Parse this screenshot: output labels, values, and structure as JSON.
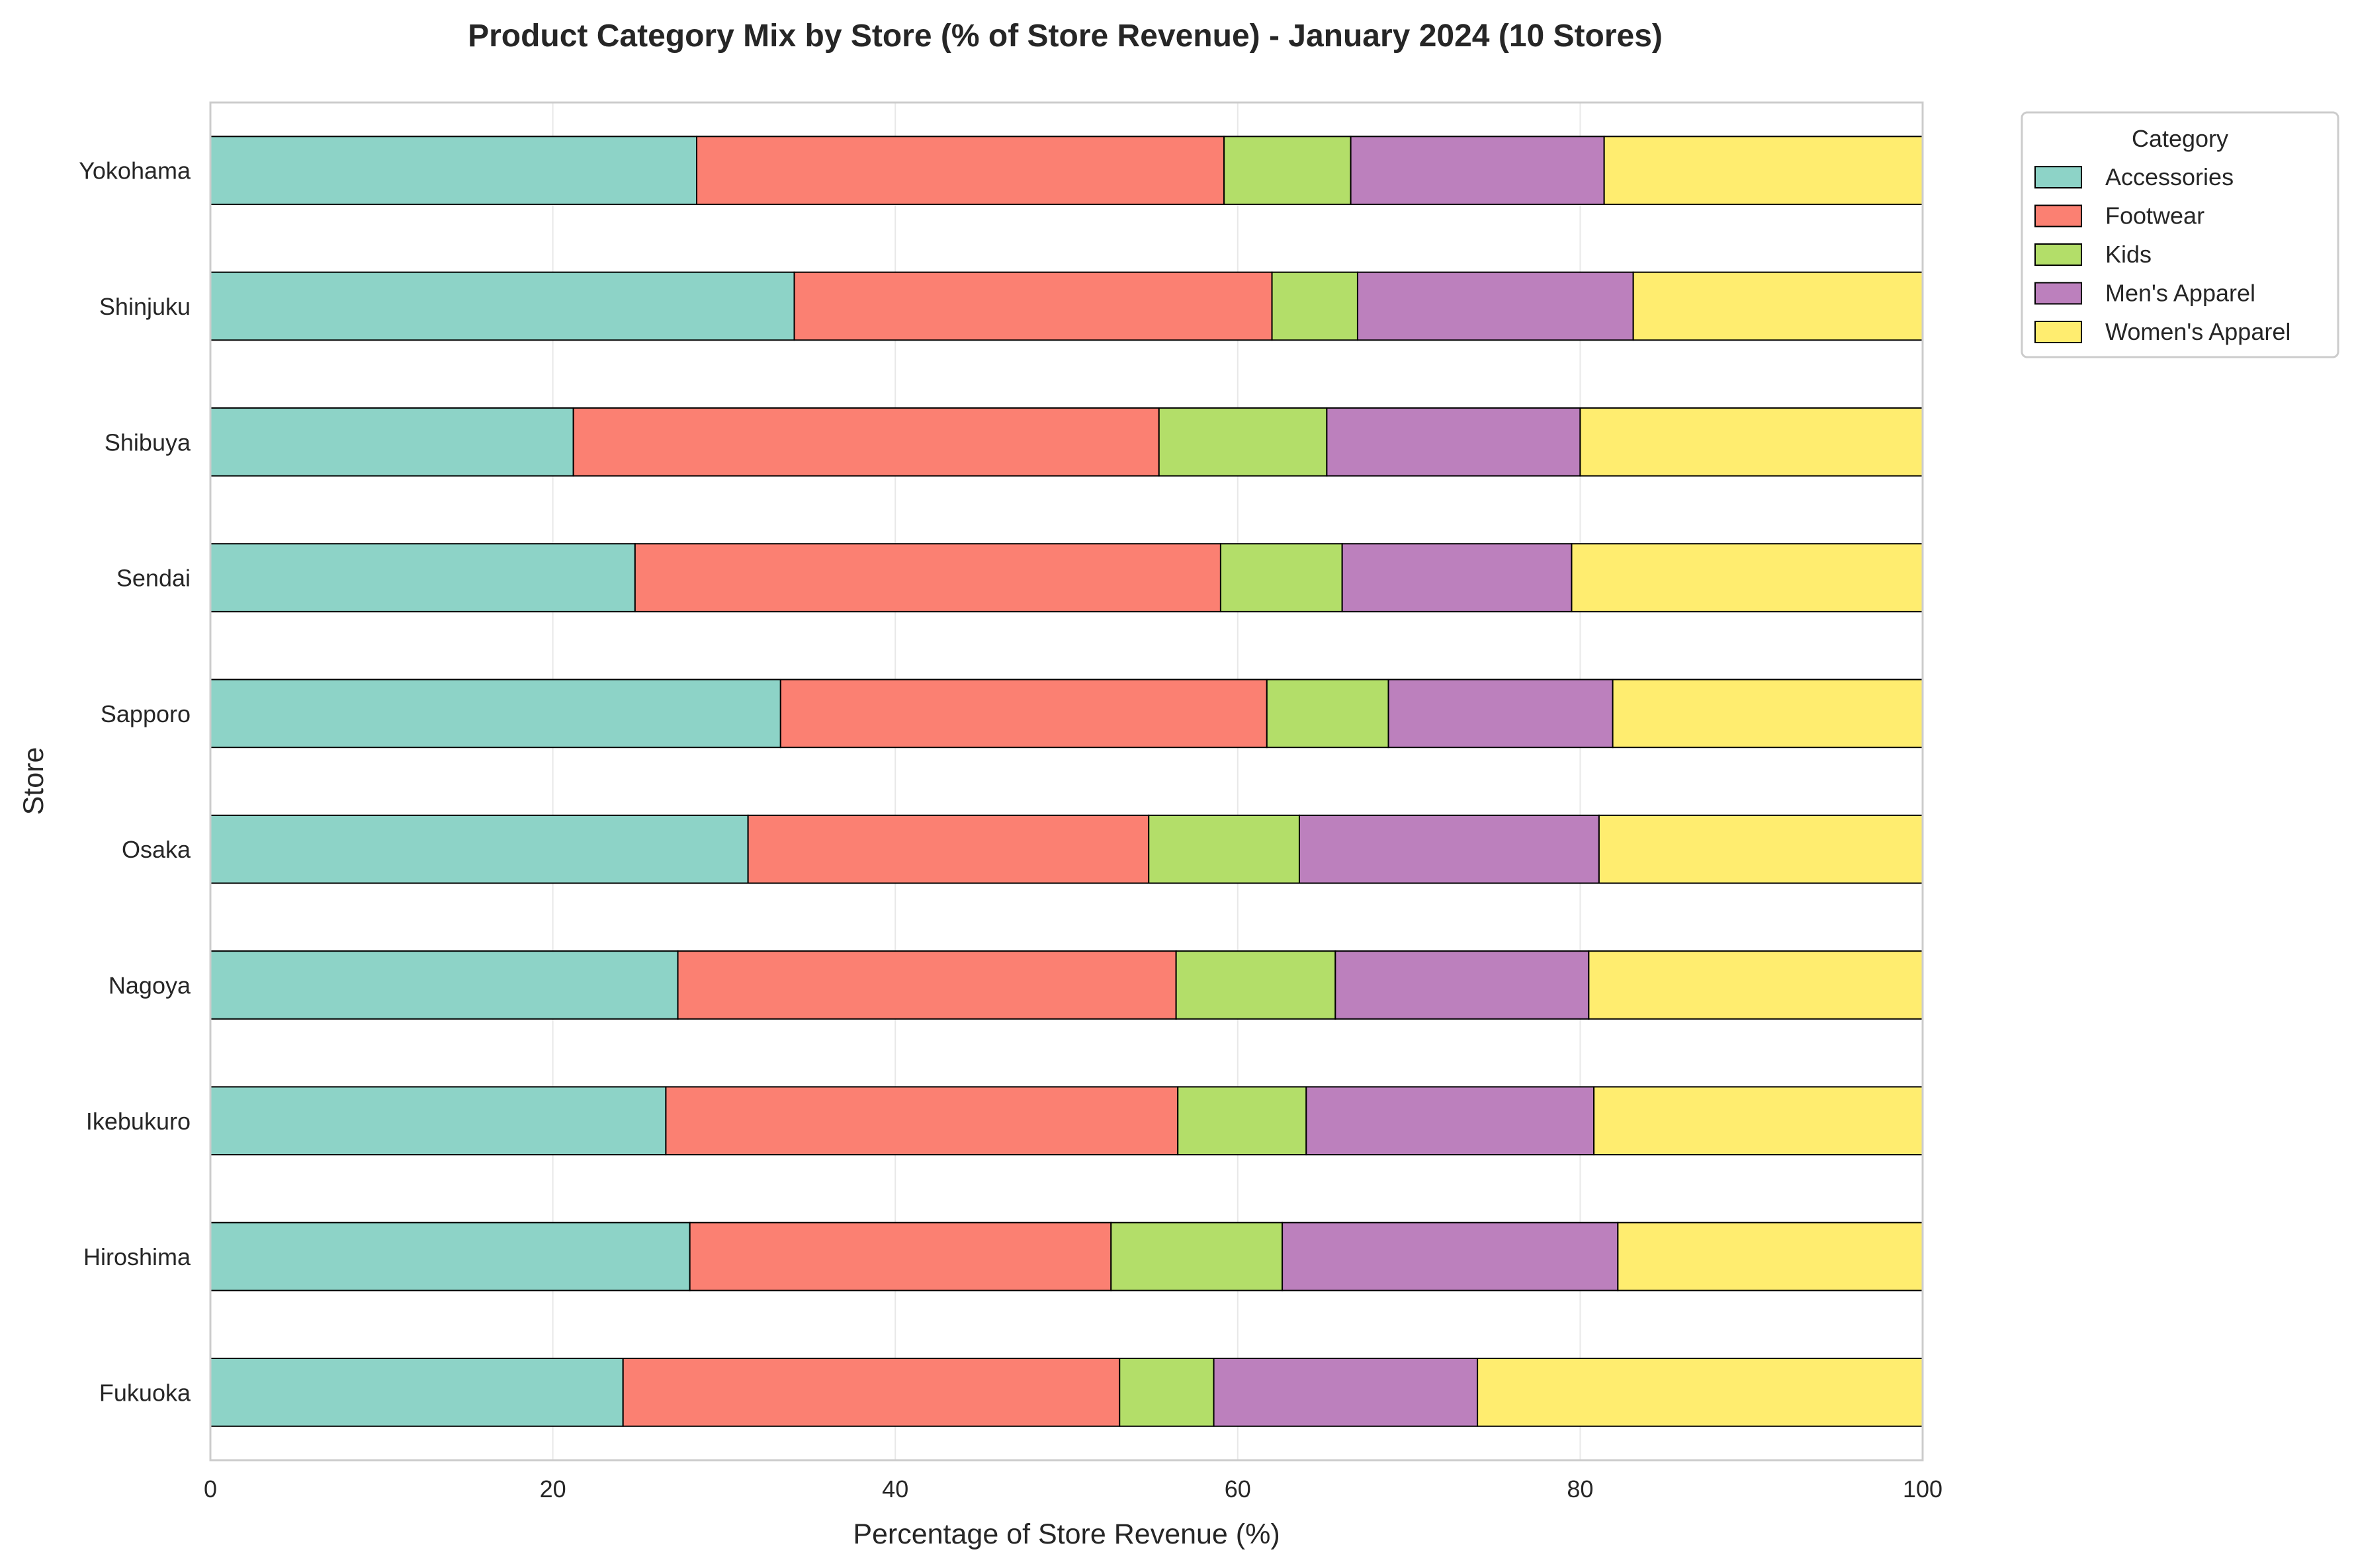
{
  "chart_data": {
    "type": "bar",
    "orientation": "horizontal",
    "stacked": true,
    "title": "Product Category Mix by Store (% of Store Revenue) - January 2024 (10 Stores)",
    "xlabel": "Percentage of Store Revenue (%)",
    "ylabel": "Store",
    "xlim": [
      0,
      100
    ],
    "xticks": [
      0,
      20,
      40,
      60,
      80,
      100
    ],
    "grid": "vertical",
    "legend": {
      "title": "Category",
      "placement": "outside-top-right"
    },
    "categories": [
      "Yokohama",
      "Shinjuku",
      "Shibuya",
      "Sendai",
      "Sapporo",
      "Osaka",
      "Nagoya",
      "Ikebukuro",
      "Hiroshima",
      "Fukuoka"
    ],
    "series": [
      {
        "name": "Accessories",
        "color": "#8dd3c7",
        "values": [
          28.4,
          34.1,
          21.2,
          24.8,
          33.3,
          31.4,
          27.3,
          26.6,
          28.0,
          24.1
        ]
      },
      {
        "name": "Footwear",
        "color": "#fb8072",
        "values": [
          30.8,
          27.9,
          34.2,
          34.2,
          28.4,
          23.4,
          29.1,
          29.9,
          24.6,
          29.0
        ]
      },
      {
        "name": "Kids",
        "color": "#b3de69",
        "values": [
          7.4,
          5.0,
          9.8,
          7.1,
          7.1,
          8.8,
          9.3,
          7.5,
          10.0,
          5.5
        ]
      },
      {
        "name": "Men's Apparel",
        "color": "#bc80bd",
        "values": [
          14.8,
          16.1,
          14.8,
          13.4,
          13.1,
          17.5,
          14.8,
          16.8,
          19.6,
          15.4
        ]
      },
      {
        "name": "Women's Apparel",
        "color": "#ffed6f",
        "values": [
          18.6,
          16.9,
          20.0,
          20.5,
          18.1,
          18.9,
          19.5,
          19.2,
          17.8,
          26.0
        ]
      }
    ]
  }
}
